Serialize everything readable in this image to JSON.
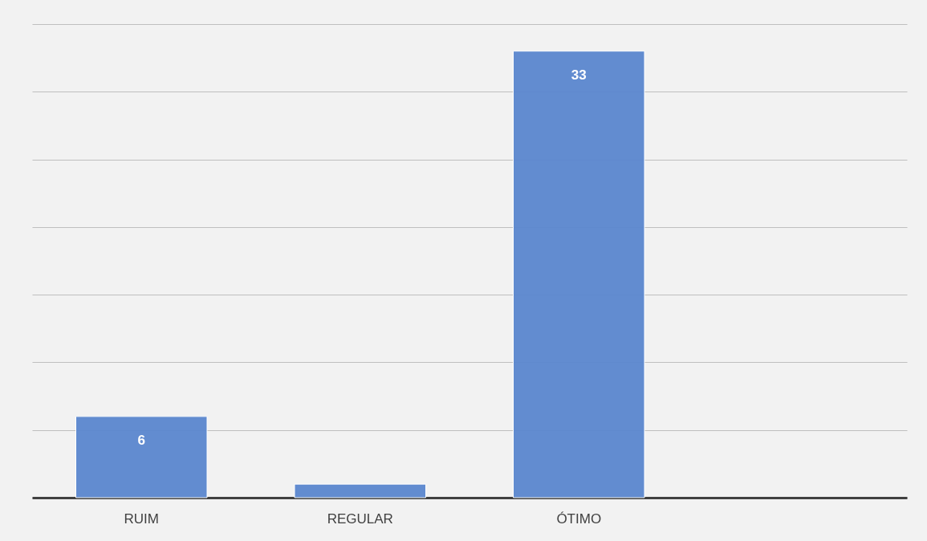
{
  "chart_data": {
    "type": "bar",
    "categories": [
      "RUIM",
      "REGULAR",
      "ÓTIMO",
      null
    ],
    "values": [
      6,
      1,
      33,
      null
    ],
    "value_labels": [
      "6",
      null,
      "33",
      null
    ],
    "color": "#5b87cf",
    "ylim": [
      0,
      35
    ],
    "yticks": [
      {
        "value": 0,
        "label": null
      },
      {
        "value": 5,
        "label": null
      },
      {
        "value": 10,
        "label": null
      },
      {
        "value": 15,
        "label": null
      },
      {
        "value": 20,
        "label": null
      },
      {
        "value": 25,
        "label": null
      },
      {
        "value": 30,
        "label": null
      },
      {
        "value": 35,
        "label": null
      }
    ],
    "grid": "y",
    "tick_labels": "x"
  }
}
